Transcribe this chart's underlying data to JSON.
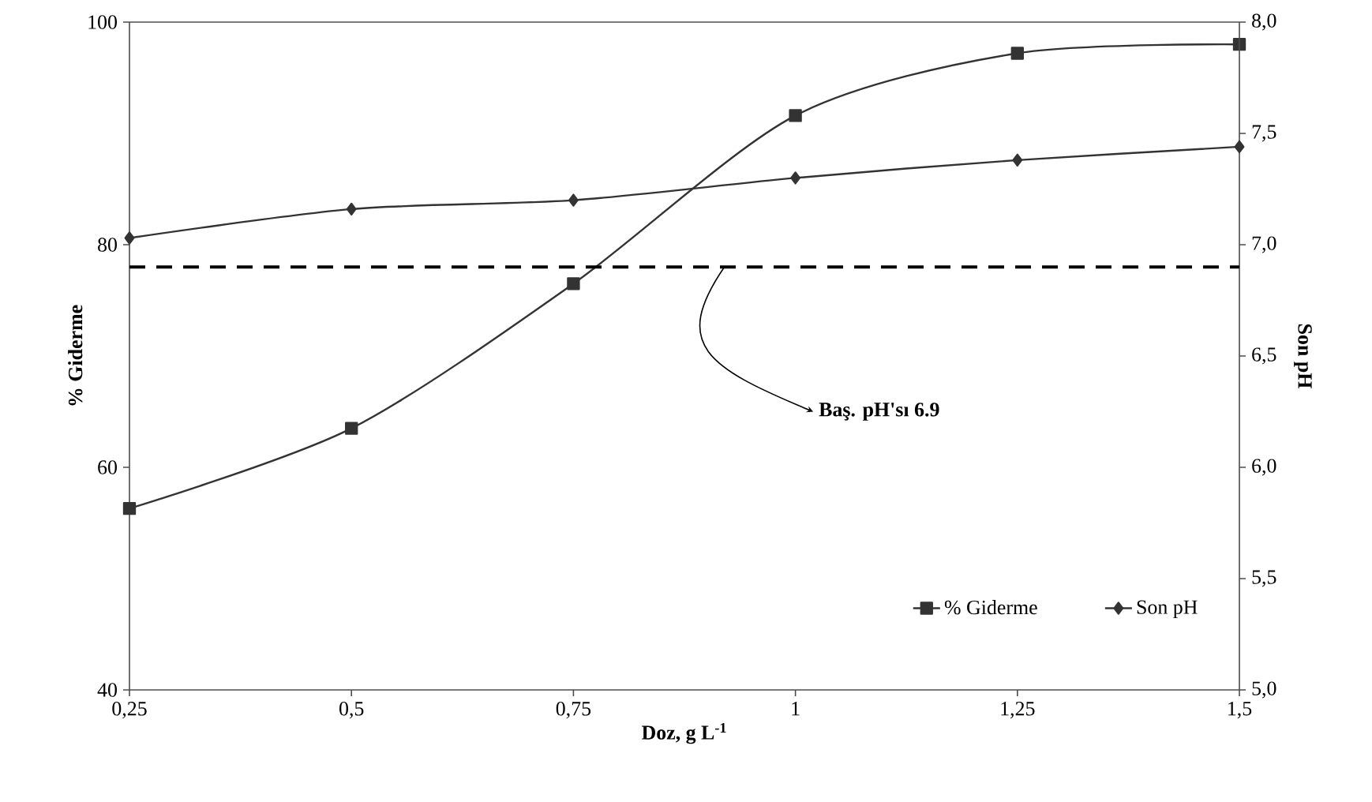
{
  "chart_data": {
    "type": "line",
    "xlabel": "Doz, g L$^{-1}$",
    "ylabel": "% Giderme",
    "y2label": "Son pH",
    "x": [
      0.25,
      0.5,
      0.75,
      1,
      1.25,
      1.5
    ],
    "series": [
      {
        "name": "% Giderme",
        "color": "#333333",
        "marker": "square",
        "values": [
          56.3,
          63.5,
          76.5,
          91.6,
          97.2,
          98.0
        ]
      },
      {
        "name": "Son pH",
        "color": "#333333",
        "marker": "diamond",
        "axis": "y2",
        "values": [
          7.03,
          7.16,
          7.2,
          7.3,
          7.38,
          7.44
        ]
      }
    ],
    "xlim": [
      0.25,
      1.5
    ],
    "xticks": [
      {
        "value": 0.25,
        "label": "0,25"
      },
      {
        "value": 0.5,
        "label": "0,5"
      },
      {
        "value": 0.75,
        "label": "0,75"
      },
      1,
      {
        "value": 1.25,
        "label": "1,25"
      },
      {
        "value": 1.5,
        "label": "1,5"
      }
    ],
    "ylim": [
      40,
      100
    ],
    "yticks": [
      40,
      60,
      80,
      100
    ],
    "y2lim": [
      5,
      8
    ],
    "y2ticks": [
      {
        "value": 5,
        "label": "5,0"
      },
      {
        "value": 5.5,
        "label": "5,5"
      },
      {
        "value": 6,
        "label": "6,0"
      },
      {
        "value": 6.5,
        "label": "6,5"
      },
      {
        "value": 7,
        "label": "7,0"
      },
      {
        "value": 7.5,
        "label": "7,5"
      },
      {
        "value": 8,
        "label": "8,0"
      }
    ],
    "ref_lines": [
      {
        "axis": "y2",
        "value": 6.9,
        "label": "Baş. pH'sı 6.9",
        "color": "#000000",
        "line_style": "dashed"
      }
    ],
    "grid": false,
    "legend": "bottom right",
    "line_style": "solid"
  }
}
